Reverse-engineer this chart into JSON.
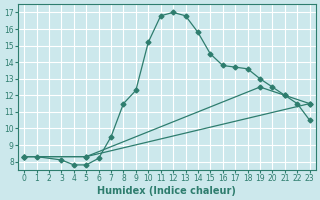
{
  "xlabel": "Humidex (Indice chaleur)",
  "background_color": "#cce8ec",
  "grid_color": "#ffffff",
  "line_color": "#2e7d6e",
  "xlim": [
    -0.5,
    23.5
  ],
  "ylim": [
    7.5,
    17.5
  ],
  "xticks": [
    0,
    1,
    2,
    3,
    4,
    5,
    6,
    7,
    8,
    9,
    10,
    11,
    12,
    13,
    14,
    15,
    16,
    17,
    18,
    19,
    20,
    21,
    22,
    23
  ],
  "yticks": [
    8,
    9,
    10,
    11,
    12,
    13,
    14,
    15,
    16,
    17
  ],
  "line1_x": [
    0,
    1,
    3,
    4,
    5,
    6,
    7,
    8,
    9,
    10,
    11,
    12,
    13,
    14,
    15,
    16,
    17,
    18,
    19,
    20,
    21,
    22,
    23
  ],
  "line1_y": [
    8.3,
    8.3,
    8.1,
    7.8,
    7.8,
    8.2,
    9.5,
    11.5,
    12.3,
    15.2,
    16.8,
    17.0,
    16.8,
    15.8,
    14.5,
    13.8,
    13.7,
    13.6,
    13.0,
    12.5,
    12.0,
    11.5,
    10.5
  ],
  "line2_x": [
    0,
    5,
    23
  ],
  "line2_y": [
    8.3,
    8.3,
    11.5
  ],
  "line3_x": [
    0,
    5,
    19,
    21,
    23
  ],
  "line3_y": [
    8.3,
    8.3,
    12.5,
    12.0,
    11.5
  ]
}
